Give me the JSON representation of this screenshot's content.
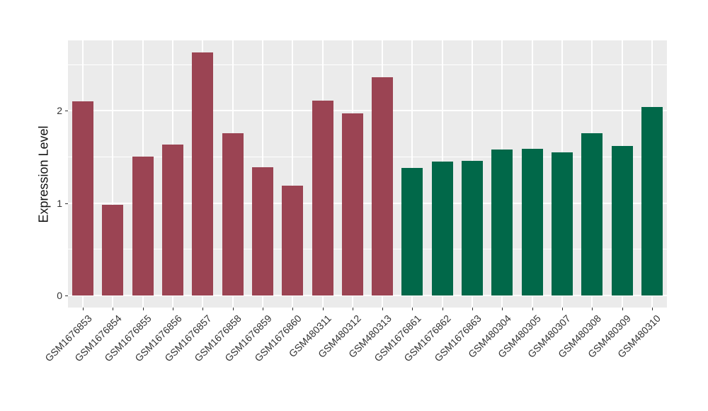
{
  "chart_data": {
    "type": "bar",
    "title": "",
    "xlabel": "",
    "ylabel": "Expression Level",
    "categories": [
      "GSM1676853",
      "GSM1676854",
      "GSM1676855",
      "GSM1676856",
      "GSM1676857",
      "GSM1676858",
      "GSM1676859",
      "GSM1676860",
      "GSM480311",
      "GSM480312",
      "GSM480313",
      "GSM1676861",
      "GSM1676862",
      "GSM1676863",
      "GSM480304",
      "GSM480305",
      "GSM480307",
      "GSM480308",
      "GSM480309",
      "GSM480310"
    ],
    "values": [
      2.1,
      0.98,
      1.5,
      1.63,
      2.63,
      1.76,
      1.39,
      1.19,
      2.11,
      1.97,
      2.36,
      1.38,
      1.45,
      1.46,
      1.58,
      1.59,
      1.55,
      1.76,
      1.62,
      2.04
    ],
    "bar_groups": [
      0,
      0,
      0,
      0,
      0,
      0,
      0,
      0,
      0,
      0,
      0,
      1,
      1,
      1,
      1,
      1,
      1,
      1,
      1,
      1
    ],
    "group_colors": [
      "#9B4453",
      "#016849"
    ],
    "yticks": [
      0,
      1,
      2
    ],
    "y_minor_ticks": [
      0.5,
      1.5,
      2.5
    ],
    "ylim": [
      0,
      2.75
    ],
    "legend_position": "none",
    "grid": "on",
    "panel_background": "#EBEBEB",
    "gridline_color": "#FFFFFF",
    "axis_text_color": "#333333",
    "tick_mark_color": "#333333"
  }
}
